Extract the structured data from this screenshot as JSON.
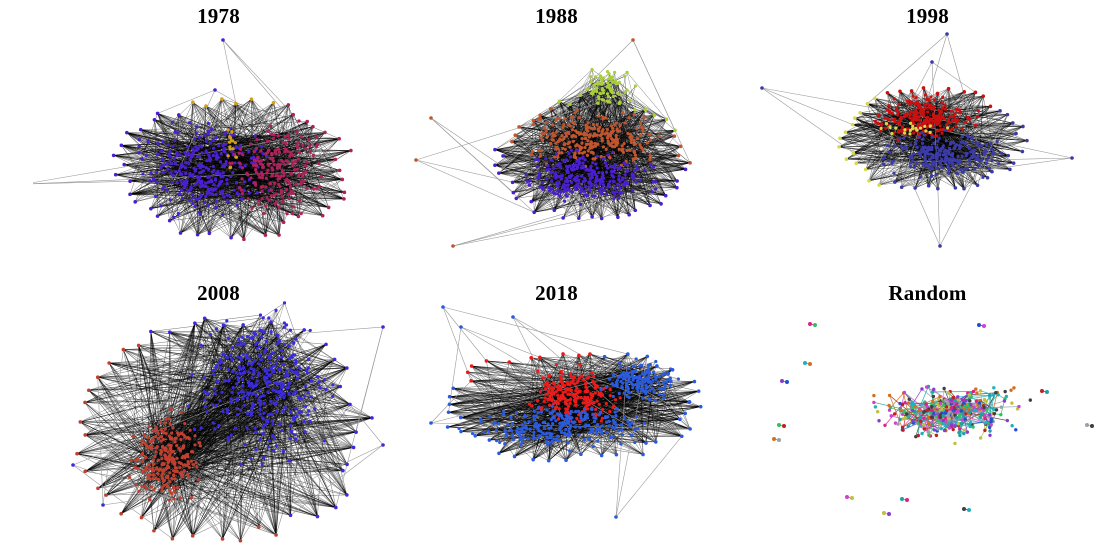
{
  "figure": {
    "panels": [
      {
        "id": "p1978",
        "title": "1978",
        "kind": "network",
        "communities": [
          {
            "name": "c1",
            "color": "#4a1fd0"
          },
          {
            "name": "c2",
            "color": "#b0205a"
          },
          {
            "name": "c3",
            "color": "#d4a017"
          }
        ]
      },
      {
        "id": "p1988",
        "title": "1988",
        "kind": "network",
        "communities": [
          {
            "name": "c1",
            "color": "#c0552e"
          },
          {
            "name": "c2",
            "color": "#4a1fd0"
          },
          {
            "name": "c3",
            "color": "#a8cf3a"
          }
        ]
      },
      {
        "id": "p1998",
        "title": "1998",
        "kind": "network",
        "communities": [
          {
            "name": "c1",
            "color": "#cc1010"
          },
          {
            "name": "c2",
            "color": "#3a3aa8"
          },
          {
            "name": "c3",
            "color": "#d8d84a"
          }
        ]
      },
      {
        "id": "p2008",
        "title": "2008",
        "kind": "network",
        "communities": [
          {
            "name": "c1",
            "color": "#3a2ae0"
          },
          {
            "name": "c2",
            "color": "#c04030"
          }
        ]
      },
      {
        "id": "p2018",
        "title": "2018",
        "kind": "network",
        "communities": [
          {
            "name": "c1",
            "color": "#ee1a1a"
          },
          {
            "name": "c2",
            "color": "#2a5ae0"
          }
        ]
      },
      {
        "id": "prandom",
        "title": "Random",
        "kind": "random",
        "communities": [
          {
            "name": "mixed",
            "color": "#888888"
          }
        ]
      }
    ]
  }
}
